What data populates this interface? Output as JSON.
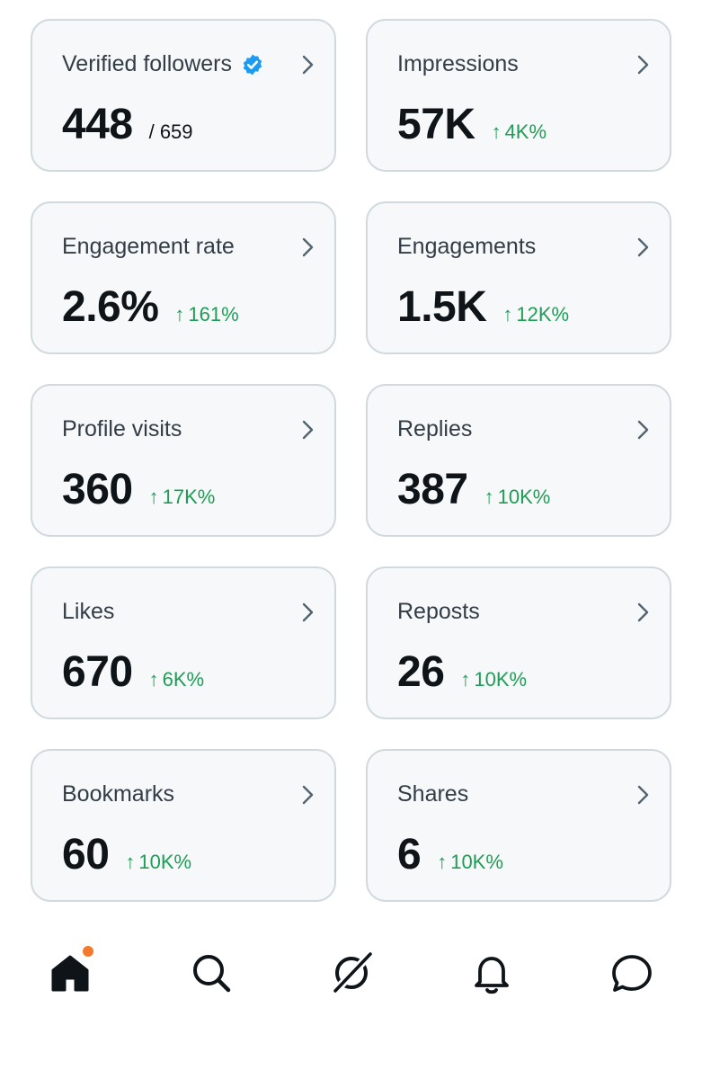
{
  "colors": {
    "accent_green": "#1f9d57",
    "verified_blue": "#1d9bf0",
    "notification_dot": "#f4792a",
    "card_background": "#f6f8f9",
    "card_border": "#cfd9de"
  },
  "metrics": [
    {
      "label": "Verified followers",
      "value": "448",
      "total": "/ 659",
      "icon": "verified-badge-icon"
    },
    {
      "label": "Impressions",
      "value": "57K",
      "arrow": "↑",
      "change": "4K%"
    },
    {
      "label": "Engagement rate",
      "value": "2.6%",
      "arrow": "↑",
      "change": "161%"
    },
    {
      "label": "Engagements",
      "value": "1.5K",
      "arrow": "↑",
      "change": "12K%"
    },
    {
      "label": "Profile visits",
      "value": "360",
      "arrow": "↑",
      "change": "17K%"
    },
    {
      "label": "Replies",
      "value": "387",
      "arrow": "↑",
      "change": "10K%"
    },
    {
      "label": "Likes",
      "value": "670",
      "arrow": "↑",
      "change": "6K%"
    },
    {
      "label": "Reposts",
      "value": "26",
      "arrow": "↑",
      "change": "10K%"
    },
    {
      "label": "Bookmarks",
      "value": "60",
      "arrow": "↑",
      "change": "10K%"
    },
    {
      "label": "Shares",
      "value": "6",
      "arrow": "↑",
      "change": "10K%"
    }
  ],
  "bottom_nav": {
    "items": [
      {
        "icon": "home-icon",
        "active": true,
        "has_notification_dot": true
      },
      {
        "icon": "search-icon",
        "active": false
      },
      {
        "icon": "grok-icon",
        "active": false
      },
      {
        "icon": "bell-icon",
        "active": false
      },
      {
        "icon": "messages-icon",
        "active": false
      }
    ]
  }
}
